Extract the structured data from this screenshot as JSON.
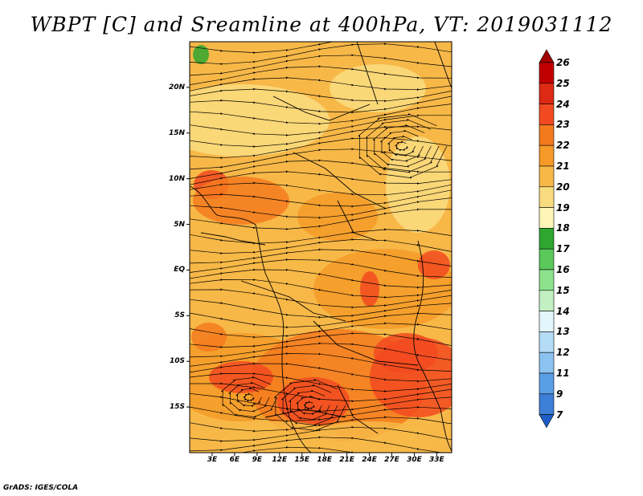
{
  "title": "WBPT [C] and Sreamline at 400hPa, VT: 2019031112",
  "footer": "GrADS: IGES/COLA",
  "map": {
    "projection": "latlon",
    "lon_range": [
      0,
      35
    ],
    "lat_range": [
      -20,
      25
    ],
    "lat_labels": [
      "20N",
      "15N",
      "10N",
      "5N",
      "EQ",
      "5S",
      "10S",
      "15S"
    ],
    "lon_labels": [
      "3E",
      "6E",
      "9E",
      "12E",
      "15E",
      "18E",
      "21E",
      "24E",
      "27E",
      "30E",
      "33E"
    ],
    "fields": [
      "shaded wet-bulb potential temperature",
      "streamlines"
    ]
  },
  "colorbar": {
    "levels": [
      "26",
      "25",
      "24",
      "23",
      "22",
      "21",
      "20",
      "19",
      "18",
      "17",
      "16",
      "15",
      "14",
      "13",
      "12",
      "11",
      "9",
      "7"
    ],
    "colors": [
      "#a00000",
      "#c00000",
      "#dc2a14",
      "#f24a20",
      "#f47a1e",
      "#f59a28",
      "#f7b848",
      "#fadc80",
      "#fdf5b8",
      "#2fa62f",
      "#5ac85a",
      "#8ee28e",
      "#c3f0c3",
      "#e3f6fb",
      "#b4dcf5",
      "#8cc2f0",
      "#5a9fe6",
      "#3d7fd6",
      "#1e5ec6"
    ]
  }
}
